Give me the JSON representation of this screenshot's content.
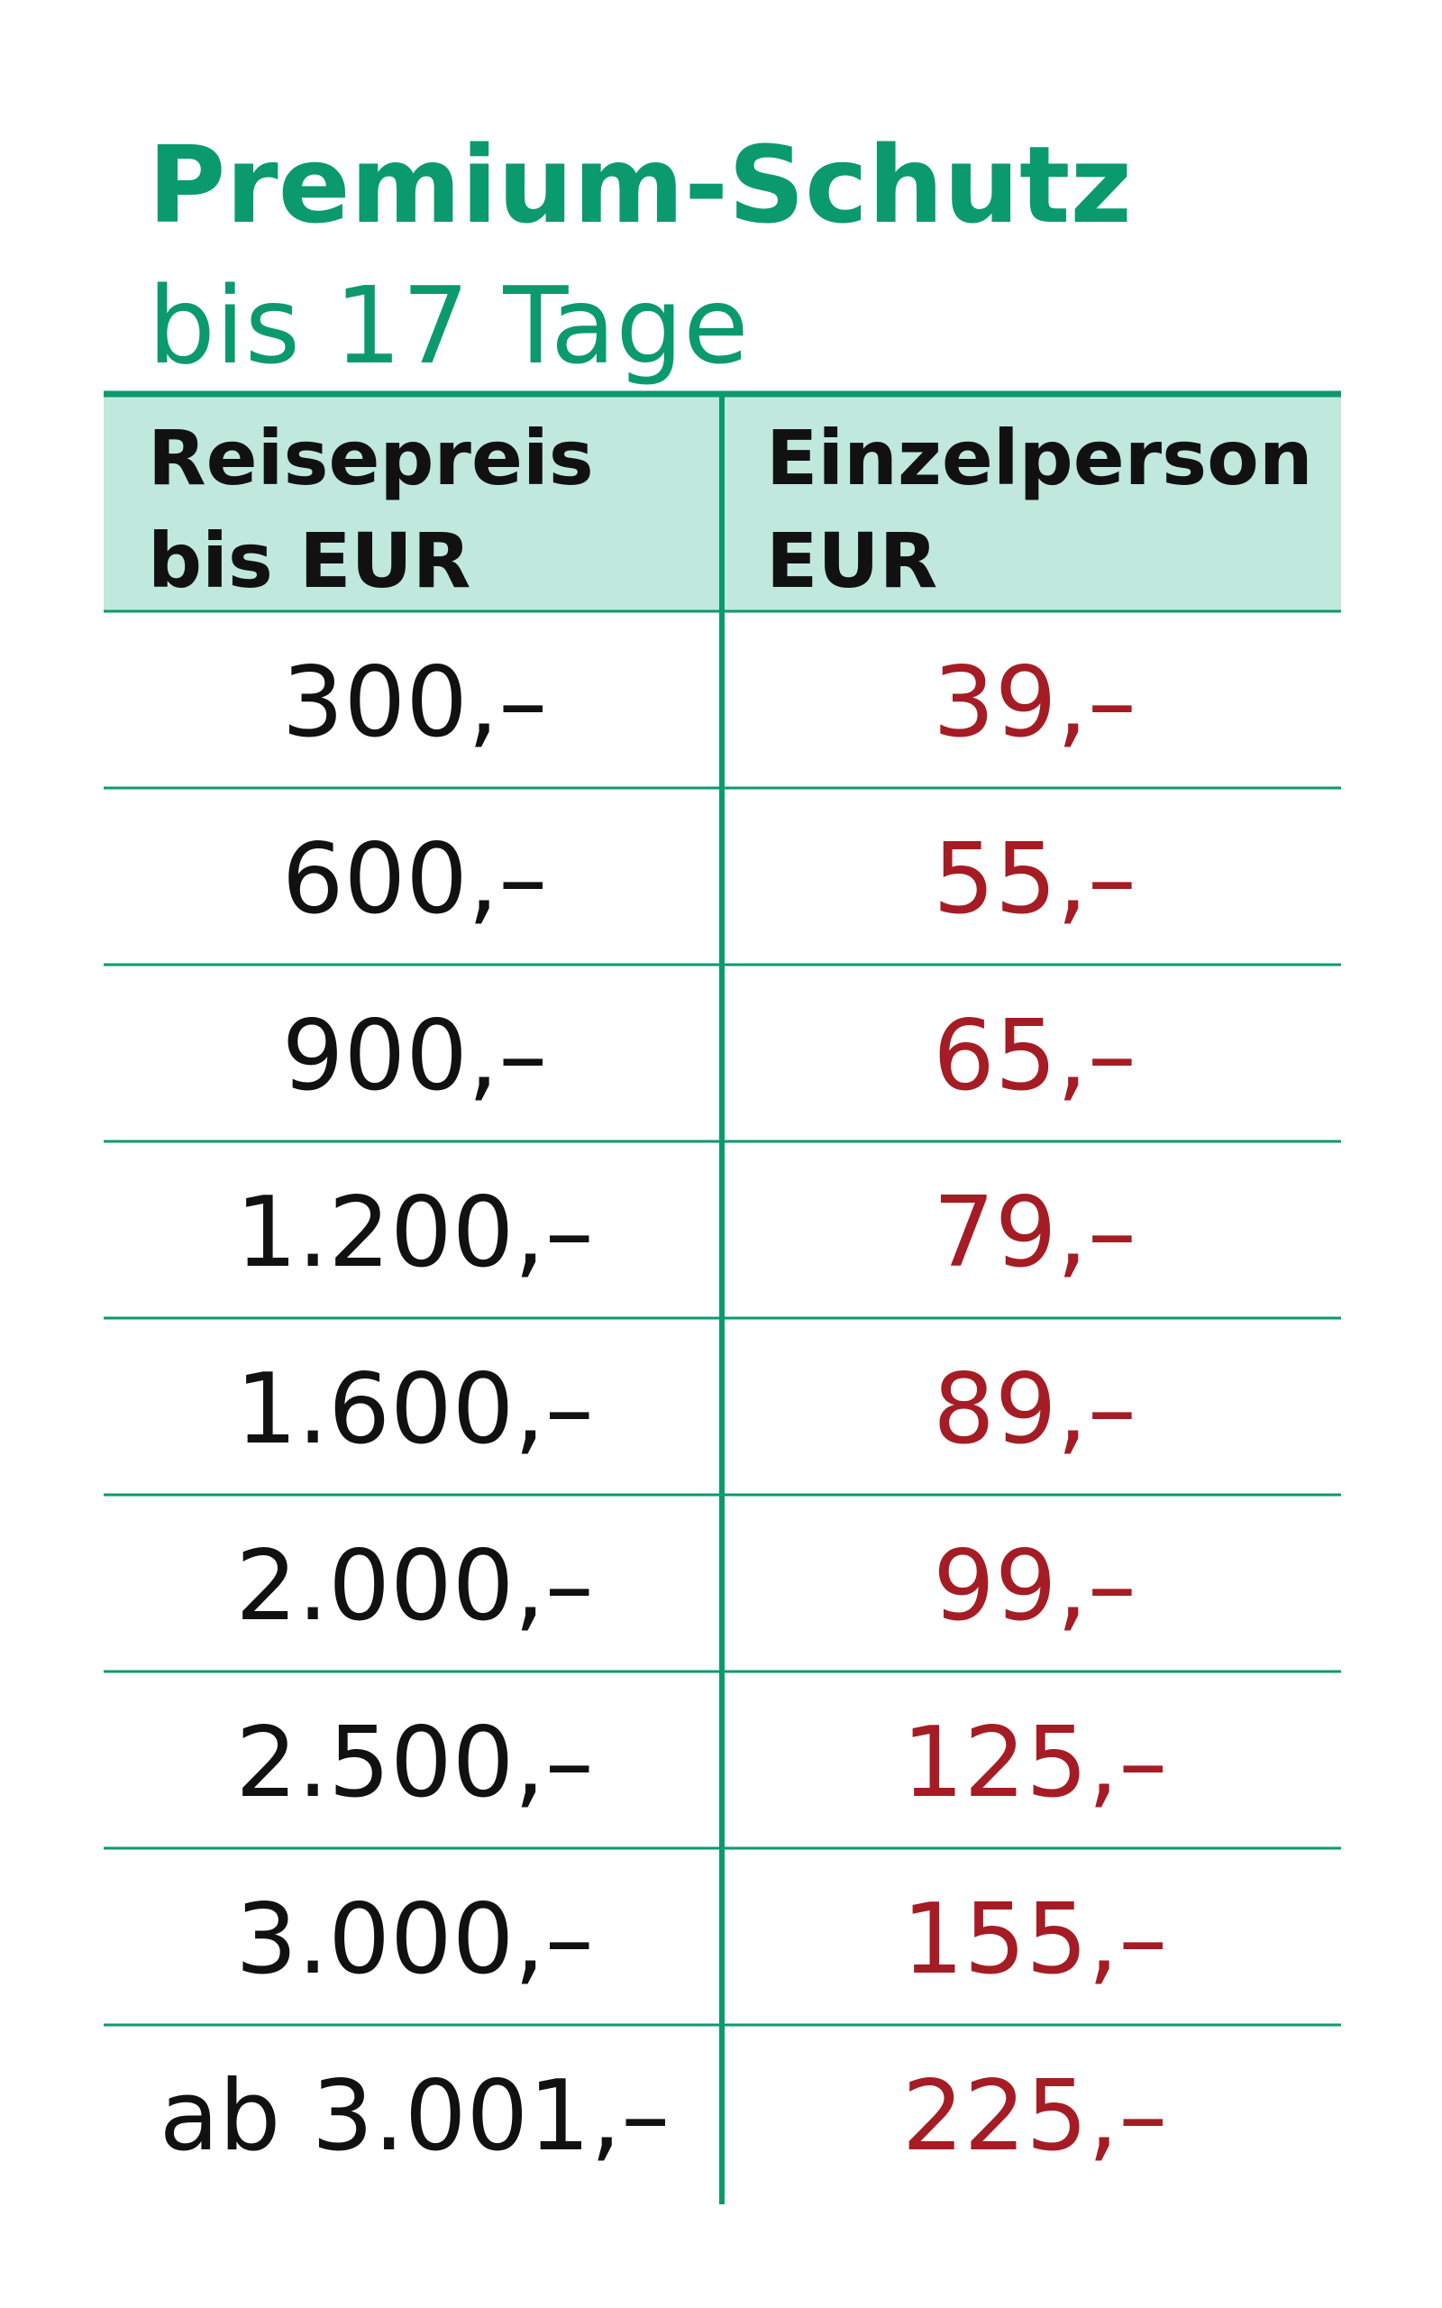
{
  "header": {
    "title": "Premium-Schutz",
    "subtitle": "bis 17 Tage"
  },
  "table": {
    "columns": [
      [
        "Reisepreis",
        "bis EUR"
      ],
      [
        "Einzelperson",
        "EUR"
      ]
    ],
    "rows": [
      [
        "300,–",
        "39,–"
      ],
      [
        "600,–",
        "55,–"
      ],
      [
        "900,–",
        "65,–"
      ],
      [
        "1.200,–",
        "79,–"
      ],
      [
        "1.600,–",
        "89,–"
      ],
      [
        "2.000,–",
        "99,–"
      ],
      [
        "2.500,–",
        "125,–"
      ],
      [
        "3.000,–",
        "155,–"
      ],
      [
        "ab 3.001,–",
        "225,–"
      ]
    ]
  }
}
